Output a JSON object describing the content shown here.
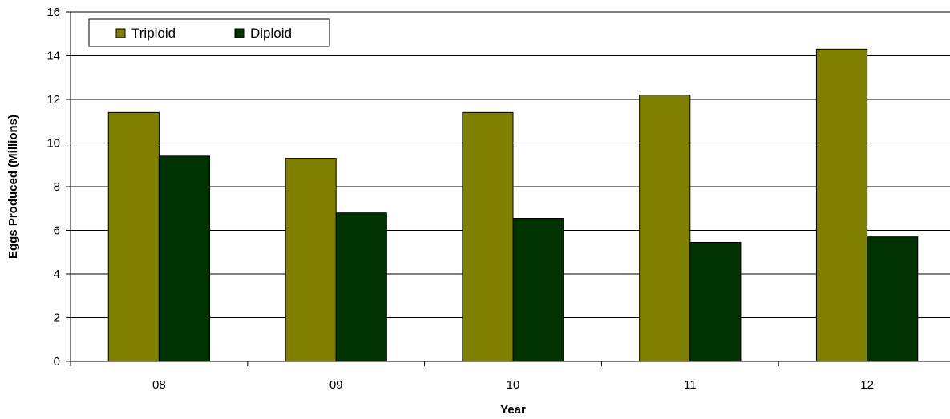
{
  "chart_data": {
    "type": "bar",
    "title": "",
    "xlabel": "Year",
    "ylabel": "Eggs Produced (Millions)",
    "categories": [
      "08",
      "09",
      "10",
      "11",
      "12"
    ],
    "series": [
      {
        "name": "Triploid",
        "color": "#808000",
        "values": [
          11.4,
          9.3,
          11.4,
          12.2,
          14.3
        ]
      },
      {
        "name": "Diploid",
        "color": "#003300",
        "values": [
          9.4,
          6.8,
          6.55,
          5.45,
          5.7
        ]
      }
    ],
    "ylim": [
      0,
      16
    ],
    "yticks": [
      0,
      2,
      4,
      6,
      8,
      10,
      12,
      14,
      16
    ],
    "grid": true,
    "legend": "top-left"
  }
}
